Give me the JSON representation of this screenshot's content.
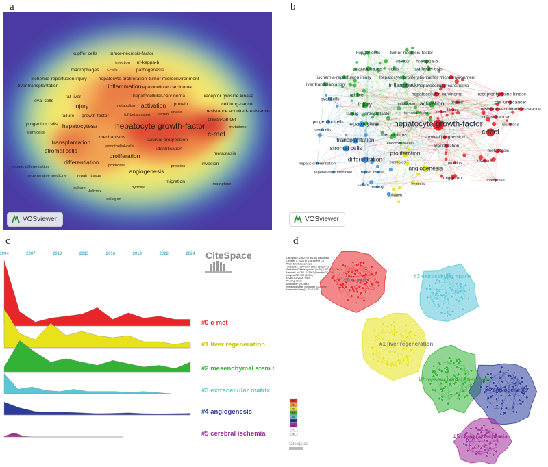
{
  "panels": {
    "a": "a",
    "b": "b",
    "c": "c",
    "d": "d"
  },
  "vosviewer_label": "VOSviewer",
  "citespace_label": "CiteSpace",
  "colors": {
    "red": "#e8262a",
    "green": "#34b236",
    "blue": "#3a8fd8",
    "yellow": "#e8e21a",
    "cyan": "#5bc6d8",
    "navy": "#2c3c9a",
    "purple": "#a0309a"
  },
  "keywords": [
    {
      "text": "kupffer cells",
      "cluster": "green",
      "size": "s"
    },
    {
      "text": "tumor-necrosis-factor",
      "cluster": "green",
      "size": "s"
    },
    {
      "text": "infection",
      "cluster": "green",
      "size": "xs"
    },
    {
      "text": "nf-kappa-b",
      "cluster": "green",
      "size": "s"
    },
    {
      "text": "macrophages",
      "cluster": "green",
      "size": "s"
    },
    {
      "text": "t-cells",
      "cluster": "green",
      "size": "xs"
    },
    {
      "text": "pathogenesis",
      "cluster": "green",
      "size": "s"
    },
    {
      "text": "ischemia-reperfusion injury",
      "cluster": "green",
      "size": "s"
    },
    {
      "text": "hepatocyte proliferation",
      "cluster": "green",
      "size": "s"
    },
    {
      "text": "tumor microenvironment",
      "cluster": "red",
      "size": "s"
    },
    {
      "text": "liver transplantation",
      "cluster": "green",
      "size": "s"
    },
    {
      "text": "inflammation",
      "cluster": "green",
      "size": "m"
    },
    {
      "text": "hepatocellular carcinoma",
      "cluster": "red",
      "size": "s"
    },
    {
      "text": "rat-liver",
      "cluster": "green",
      "size": "s"
    },
    {
      "text": "hepatocellular-carcinoma",
      "cluster": "red",
      "size": "s"
    },
    {
      "text": "receptor tyrosine kinase",
      "cluster": "red",
      "size": "s"
    },
    {
      "text": "oval cells",
      "cluster": "blue",
      "size": "s"
    },
    {
      "text": "protein",
      "cluster": "red",
      "size": "s"
    },
    {
      "text": "cell lung-cancer",
      "cluster": "red",
      "size": "s"
    },
    {
      "text": "injury",
      "cluster": "green",
      "size": "m"
    },
    {
      "text": "metabolism",
      "cluster": "green",
      "size": "xs"
    },
    {
      "text": "activation",
      "cluster": "green",
      "size": "m"
    },
    {
      "text": "resistance",
      "cluster": "red",
      "size": "s"
    },
    {
      "text": "acquired-resistance",
      "cluster": "red",
      "size": "s"
    },
    {
      "text": "kinase",
      "cluster": "red",
      "size": "xs"
    },
    {
      "text": "failure",
      "cluster": "green",
      "size": "s"
    },
    {
      "text": "growth-factor",
      "cluster": "green",
      "size": "s"
    },
    {
      "text": "tgf-beta system",
      "cluster": "green",
      "size": "xs"
    },
    {
      "text": "serum",
      "cluster": "red",
      "size": "xs"
    },
    {
      "text": "breast-cancer",
      "cluster": "red",
      "size": "s"
    },
    {
      "text": "progenitor cells",
      "cluster": "blue",
      "size": "s"
    },
    {
      "text": "hepatocytes",
      "cluster": "blue",
      "size": "m"
    },
    {
      "text": "rat",
      "cluster": "green",
      "size": "xs"
    },
    {
      "text": "hepatocyte growth-factor",
      "cluster": "red",
      "size": "xl"
    },
    {
      "text": "mutations",
      "cluster": "red",
      "size": "xs"
    },
    {
      "text": "c-met",
      "cluster": "red",
      "size": "l"
    },
    {
      "text": "stem cells",
      "cluster": "blue",
      "size": "xs"
    },
    {
      "text": "mechanisms",
      "cluster": "green",
      "size": "s"
    },
    {
      "text": "survival progression",
      "cluster": "red",
      "size": "s"
    },
    {
      "text": "transplantation",
      "cluster": "blue",
      "size": "m"
    },
    {
      "text": "endothelial-cells",
      "cluster": "green",
      "size": "xs"
    },
    {
      "text": "identification",
      "cluster": "red",
      "size": "s"
    },
    {
      "text": "stromal cells",
      "cluster": "blue",
      "size": "m"
    },
    {
      "text": "proliferation",
      "cluster": "yellow",
      "size": "m"
    },
    {
      "text": "metastasis",
      "cluster": "red",
      "size": "s"
    },
    {
      "text": "differentiation",
      "cluster": "blue",
      "size": "m"
    },
    {
      "text": "invasion",
      "cluster": "red",
      "size": "s"
    },
    {
      "text": "angiogenesis",
      "cluster": "yellow",
      "size": "m"
    },
    {
      "text": "promotes",
      "cluster": "yellow",
      "size": "xs"
    },
    {
      "text": "proteins",
      "cluster": "red",
      "size": "xs"
    },
    {
      "text": "hepatic differentiation",
      "cluster": "blue",
      "size": "xs"
    },
    {
      "text": "regenerative medicine",
      "cluster": "blue",
      "size": "xs"
    },
    {
      "text": "repair",
      "cluster": "blue",
      "size": "xs"
    },
    {
      "text": "tissue",
      "cluster": "blue",
      "size": "xs"
    },
    {
      "text": "migration",
      "cluster": "red",
      "size": "s"
    },
    {
      "text": "matriptase",
      "cluster": "red",
      "size": "xs"
    },
    {
      "text": "culture",
      "cluster": "blue",
      "size": "xs"
    },
    {
      "text": "hypoxia",
      "cluster": "yellow",
      "size": "xs"
    },
    {
      "text": "delivery",
      "cluster": "blue",
      "size": "xs"
    },
    {
      "text": "collagen",
      "cluster": "yellow",
      "size": "xs"
    }
  ],
  "timeline": {
    "years": [
      "1994",
      "2007",
      "2010",
      "2013",
      "2016",
      "2019",
      "2022",
      "2024"
    ],
    "clusters": [
      {
        "label": "#0 c-met",
        "color": "#e8262a",
        "values": [
          1.0,
          0.22,
          0.06,
          0.12,
          0.15,
          0.18,
          0.28,
          0.1,
          0.2,
          0.12,
          0.15,
          0.1,
          0.1
        ]
      },
      {
        "label": "#1 liver regeneration",
        "color": "#e8e21a",
        "values": [
          0.95,
          0.35,
          0.2,
          0.6,
          0.3,
          0.4,
          0.3,
          0.25,
          0.3,
          0.15,
          0.15,
          0.08,
          0.15
        ]
      },
      {
        "label": "#2 mesenchymal stem cells",
        "color": "#34b236",
        "values": [
          0.15,
          0.95,
          0.6,
          0.3,
          0.4,
          0.3,
          0.2,
          0.35,
          0.25,
          0.15,
          0.2,
          0.1,
          0.3
        ]
      },
      {
        "label": "#3 extracellular matrix",
        "color": "#5bc6d8",
        "values": [
          0.9,
          0.2,
          0.3,
          0.15,
          0.1,
          0.2,
          0.1,
          0.1,
          0.1,
          0.05,
          0.1,
          0.05,
          0
        ]
      },
      {
        "label": "#4 angiogenesis",
        "color": "#2c3c9a",
        "values": [
          0.9,
          0.5,
          0.25,
          0.2,
          0.2,
          0.15,
          0.1,
          0.12,
          0.15,
          0.1,
          0.08,
          0.1,
          0.12
        ]
      },
      {
        "label": "#5 cerebral ischemia",
        "color": "#a0309a",
        "values": [
          0.1,
          0.6,
          0.1,
          0,
          0,
          0,
          0,
          0,
          0,
          0,
          0,
          0,
          0
        ]
      }
    ]
  },
  "cluster_map": [
    {
      "label": "#0 c-met",
      "color": "#e8262a"
    },
    {
      "label": "#3 extracellular matrix",
      "color": "#5bc6d8"
    },
    {
      "label": "#1 liver regeneration",
      "color": "#e8e21a"
    },
    {
      "label": "#2 mesenchymal stem cells",
      "color": "#34b236"
    },
    {
      "label": "#4 angiogenesis",
      "color": "#2c3c9a"
    },
    {
      "label": "#5 cerebral ischemia",
      "color": "#a0309a"
    }
  ],
  "legend_items": [
    "#0",
    "#1",
    "#2",
    "#3",
    "#4",
    "#5",
    "#6",
    "#7",
    "#8"
  ],
  "info_text": [
    "CiteSpace, v. 6.2.R4 (64-bit) Advanced",
    "October 3, 2024 at 4:38:16 PM CST",
    "WoS: E:\\citespace\\data",
    "Timespan: 1994-2024 (Slice Length=1)",
    "Selection Criteria: g-index (k=25), LRF=3.0, L/N=10",
    "Network: N=752, E=3562 (Density=0.0126)",
    "Largest CC: 752 (100%)",
    "Nodes Labeled: 1.0%",
    "Pruning: None",
    "Modularity Q=0.5007",
    "Weighted Mean Silhouette S=0.8099",
    "Harmonic Mean(Q, S)=0.6187"
  ]
}
